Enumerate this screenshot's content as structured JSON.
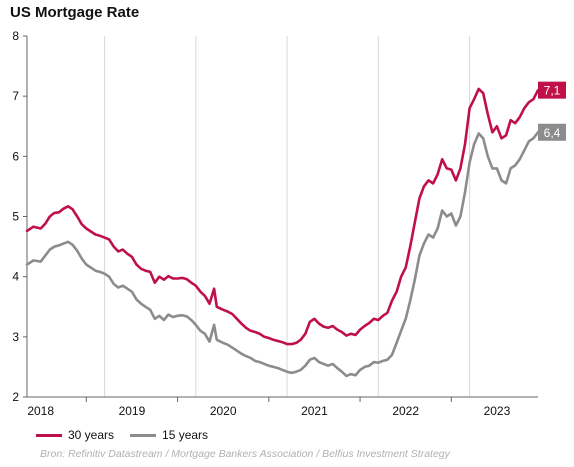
{
  "title": "US Mortgage Rate",
  "source": "Bron: Refinitiv Datastream / Mortgage Bankers Association / Belfius Investment Strategy",
  "colors": {
    "series_30": "#c0104a",
    "series_15": "#8c8c8c",
    "grid": "#d9d9d9",
    "axis": "#666666"
  },
  "chart_data": {
    "type": "line",
    "title": "US Mortgage Rate",
    "xlabel": "",
    "ylabel": "",
    "ylim": [
      2,
      8
    ],
    "yticks": [
      2,
      3,
      4,
      5,
      6,
      7,
      8
    ],
    "xlim": [
      2017.85,
      2023.45
    ],
    "xticks": [
      {
        "label": "2018",
        "pos": 2018.0
      },
      {
        "label": "2019",
        "pos": 2019.0
      },
      {
        "label": "2020",
        "pos": 2020.0
      },
      {
        "label": "2021",
        "pos": 2021.0
      },
      {
        "label": "2022",
        "pos": 2022.0
      },
      {
        "label": "2023",
        "pos": 2023.0
      }
    ],
    "grid": "vertical",
    "legend_position": "bottom-left",
    "series": [
      {
        "name": "30 years",
        "end_label": "7,1",
        "points": [
          [
            2017.85,
            4.76
          ],
          [
            2017.92,
            4.83
          ],
          [
            2018.0,
            4.8
          ],
          [
            2018.05,
            4.88
          ],
          [
            2018.1,
            5.0
          ],
          [
            2018.15,
            5.06
          ],
          [
            2018.2,
            5.07
          ],
          [
            2018.25,
            5.13
          ],
          [
            2018.3,
            5.17
          ],
          [
            2018.35,
            5.12
          ],
          [
            2018.4,
            5.0
          ],
          [
            2018.45,
            4.87
          ],
          [
            2018.5,
            4.8
          ],
          [
            2018.55,
            4.75
          ],
          [
            2018.6,
            4.7
          ],
          [
            2018.65,
            4.68
          ],
          [
            2018.7,
            4.65
          ],
          [
            2018.75,
            4.62
          ],
          [
            2018.8,
            4.5
          ],
          [
            2018.85,
            4.42
          ],
          [
            2018.9,
            4.45
          ],
          [
            2018.95,
            4.38
          ],
          [
            2019.0,
            4.33
          ],
          [
            2019.05,
            4.2
          ],
          [
            2019.1,
            4.13
          ],
          [
            2019.15,
            4.1
          ],
          [
            2019.2,
            4.08
          ],
          [
            2019.25,
            3.9
          ],
          [
            2019.3,
            4.0
          ],
          [
            2019.35,
            3.95
          ],
          [
            2019.4,
            4.01
          ],
          [
            2019.45,
            3.97
          ],
          [
            2019.5,
            3.97
          ],
          [
            2019.55,
            3.98
          ],
          [
            2019.6,
            3.96
          ],
          [
            2019.65,
            3.9
          ],
          [
            2019.7,
            3.85
          ],
          [
            2019.75,
            3.75
          ],
          [
            2019.8,
            3.68
          ],
          [
            2019.85,
            3.55
          ],
          [
            2019.9,
            3.8
          ],
          [
            2019.93,
            3.5
          ],
          [
            2020.0,
            3.45
          ],
          [
            2020.05,
            3.42
          ],
          [
            2020.1,
            3.38
          ],
          [
            2020.15,
            3.3
          ],
          [
            2020.2,
            3.22
          ],
          [
            2020.25,
            3.15
          ],
          [
            2020.3,
            3.1
          ],
          [
            2020.35,
            3.08
          ],
          [
            2020.4,
            3.05
          ],
          [
            2020.45,
            3.0
          ],
          [
            2020.5,
            2.98
          ],
          [
            2020.55,
            2.95
          ],
          [
            2020.6,
            2.93
          ],
          [
            2020.65,
            2.91
          ],
          [
            2020.7,
            2.88
          ],
          [
            2020.75,
            2.88
          ],
          [
            2020.8,
            2.9
          ],
          [
            2020.85,
            2.95
          ],
          [
            2020.9,
            3.05
          ],
          [
            2020.95,
            3.25
          ],
          [
            2021.0,
            3.3
          ],
          [
            2021.05,
            3.22
          ],
          [
            2021.1,
            3.17
          ],
          [
            2021.15,
            3.15
          ],
          [
            2021.2,
            3.18
          ],
          [
            2021.25,
            3.12
          ],
          [
            2021.3,
            3.08
          ],
          [
            2021.35,
            3.02
          ],
          [
            2021.4,
            3.05
          ],
          [
            2021.45,
            3.03
          ],
          [
            2021.5,
            3.12
          ],
          [
            2021.55,
            3.18
          ],
          [
            2021.6,
            3.23
          ],
          [
            2021.65,
            3.3
          ],
          [
            2021.7,
            3.28
          ],
          [
            2021.75,
            3.35
          ],
          [
            2021.8,
            3.4
          ],
          [
            2021.85,
            3.6
          ],
          [
            2021.9,
            3.75
          ],
          [
            2021.95,
            4.0
          ],
          [
            2022.0,
            4.15
          ],
          [
            2022.05,
            4.5
          ],
          [
            2022.1,
            4.9
          ],
          [
            2022.15,
            5.3
          ],
          [
            2022.2,
            5.5
          ],
          [
            2022.25,
            5.6
          ],
          [
            2022.3,
            5.55
          ],
          [
            2022.35,
            5.7
          ],
          [
            2022.4,
            5.95
          ],
          [
            2022.45,
            5.8
          ],
          [
            2022.5,
            5.78
          ],
          [
            2022.55,
            5.6
          ],
          [
            2022.6,
            5.8
          ],
          [
            2022.65,
            6.2
          ],
          [
            2022.7,
            6.8
          ],
          [
            2022.75,
            6.95
          ],
          [
            2022.8,
            7.12
          ],
          [
            2022.85,
            7.05
          ],
          [
            2022.9,
            6.7
          ],
          [
            2022.95,
            6.4
          ],
          [
            2023.0,
            6.5
          ],
          [
            2023.05,
            6.3
          ],
          [
            2023.1,
            6.35
          ],
          [
            2023.15,
            6.6
          ],
          [
            2023.2,
            6.55
          ],
          [
            2023.25,
            6.65
          ],
          [
            2023.3,
            6.8
          ],
          [
            2023.35,
            6.9
          ],
          [
            2023.4,
            6.95
          ],
          [
            2023.45,
            7.1
          ]
        ]
      },
      {
        "name": "15 years",
        "end_label": "6,4",
        "points": [
          [
            2017.85,
            4.2
          ],
          [
            2017.92,
            4.27
          ],
          [
            2018.0,
            4.25
          ],
          [
            2018.05,
            4.35
          ],
          [
            2018.1,
            4.45
          ],
          [
            2018.15,
            4.5
          ],
          [
            2018.2,
            4.52
          ],
          [
            2018.25,
            4.55
          ],
          [
            2018.3,
            4.58
          ],
          [
            2018.35,
            4.53
          ],
          [
            2018.4,
            4.43
          ],
          [
            2018.45,
            4.3
          ],
          [
            2018.5,
            4.2
          ],
          [
            2018.55,
            4.15
          ],
          [
            2018.6,
            4.1
          ],
          [
            2018.65,
            4.08
          ],
          [
            2018.7,
            4.05
          ],
          [
            2018.75,
            4.0
          ],
          [
            2018.8,
            3.88
          ],
          [
            2018.85,
            3.82
          ],
          [
            2018.9,
            3.85
          ],
          [
            2018.95,
            3.8
          ],
          [
            2019.0,
            3.75
          ],
          [
            2019.05,
            3.62
          ],
          [
            2019.1,
            3.55
          ],
          [
            2019.15,
            3.5
          ],
          [
            2019.2,
            3.45
          ],
          [
            2019.25,
            3.3
          ],
          [
            2019.3,
            3.35
          ],
          [
            2019.35,
            3.28
          ],
          [
            2019.4,
            3.37
          ],
          [
            2019.45,
            3.33
          ],
          [
            2019.5,
            3.35
          ],
          [
            2019.55,
            3.36
          ],
          [
            2019.6,
            3.34
          ],
          [
            2019.65,
            3.28
          ],
          [
            2019.7,
            3.2
          ],
          [
            2019.75,
            3.1
          ],
          [
            2019.8,
            3.05
          ],
          [
            2019.85,
            2.92
          ],
          [
            2019.9,
            3.2
          ],
          [
            2019.93,
            2.95
          ],
          [
            2020.0,
            2.9
          ],
          [
            2020.05,
            2.87
          ],
          [
            2020.1,
            2.82
          ],
          [
            2020.15,
            2.77
          ],
          [
            2020.2,
            2.72
          ],
          [
            2020.25,
            2.68
          ],
          [
            2020.3,
            2.65
          ],
          [
            2020.35,
            2.6
          ],
          [
            2020.4,
            2.58
          ],
          [
            2020.45,
            2.55
          ],
          [
            2020.5,
            2.52
          ],
          [
            2020.55,
            2.5
          ],
          [
            2020.6,
            2.48
          ],
          [
            2020.65,
            2.45
          ],
          [
            2020.7,
            2.42
          ],
          [
            2020.75,
            2.4
          ],
          [
            2020.8,
            2.42
          ],
          [
            2020.85,
            2.45
          ],
          [
            2020.9,
            2.52
          ],
          [
            2020.95,
            2.62
          ],
          [
            2021.0,
            2.65
          ],
          [
            2021.05,
            2.58
          ],
          [
            2021.1,
            2.55
          ],
          [
            2021.15,
            2.52
          ],
          [
            2021.2,
            2.55
          ],
          [
            2021.25,
            2.48
          ],
          [
            2021.3,
            2.42
          ],
          [
            2021.35,
            2.35
          ],
          [
            2021.4,
            2.38
          ],
          [
            2021.45,
            2.36
          ],
          [
            2021.5,
            2.45
          ],
          [
            2021.55,
            2.5
          ],
          [
            2021.6,
            2.52
          ],
          [
            2021.65,
            2.58
          ],
          [
            2021.7,
            2.57
          ],
          [
            2021.75,
            2.6
          ],
          [
            2021.8,
            2.62
          ],
          [
            2021.85,
            2.7
          ],
          [
            2021.9,
            2.9
          ],
          [
            2021.95,
            3.1
          ],
          [
            2022.0,
            3.3
          ],
          [
            2022.05,
            3.6
          ],
          [
            2022.1,
            3.95
          ],
          [
            2022.15,
            4.35
          ],
          [
            2022.2,
            4.55
          ],
          [
            2022.25,
            4.7
          ],
          [
            2022.3,
            4.65
          ],
          [
            2022.35,
            4.8
          ],
          [
            2022.4,
            5.1
          ],
          [
            2022.45,
            5.0
          ],
          [
            2022.5,
            5.05
          ],
          [
            2022.55,
            4.85
          ],
          [
            2022.6,
            5.0
          ],
          [
            2022.65,
            5.4
          ],
          [
            2022.7,
            5.9
          ],
          [
            2022.75,
            6.2
          ],
          [
            2022.8,
            6.38
          ],
          [
            2022.85,
            6.3
          ],
          [
            2022.9,
            6.0
          ],
          [
            2022.95,
            5.8
          ],
          [
            2023.0,
            5.8
          ],
          [
            2023.05,
            5.6
          ],
          [
            2023.1,
            5.55
          ],
          [
            2023.15,
            5.8
          ],
          [
            2023.2,
            5.85
          ],
          [
            2023.25,
            5.95
          ],
          [
            2023.3,
            6.1
          ],
          [
            2023.35,
            6.25
          ],
          [
            2023.4,
            6.3
          ],
          [
            2023.45,
            6.4
          ]
        ]
      }
    ]
  }
}
